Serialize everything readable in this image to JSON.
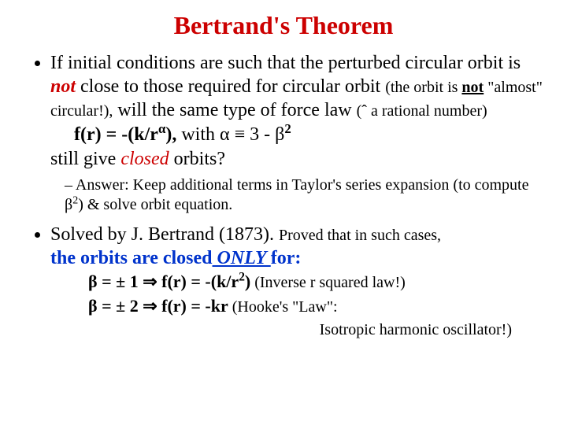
{
  "title": "Bertrand's Theorem",
  "title_color": "#cc0000",
  "fonts": {
    "family": "Times New Roman",
    "title_size_pt": 32,
    "body_size_pt": 24,
    "sub_size_pt": 20
  },
  "colors": {
    "background": "#ffffff",
    "text": "#000000",
    "accent_red": "#cc0000",
    "accent_blue": "#0033cc"
  },
  "bullet1": {
    "pre": "If initial conditions are such that the perturbed circular orbit is ",
    "not": "not",
    "mid": " close to those required for circular orbit ",
    "paren1": "(the orbit is ",
    "paren_not": "not",
    "paren2": " \"almost\" circular!),",
    "mid2": " will the same type of force law  ",
    "paren_hat": "(ˆ a rational number)",
    "eq_label": "f(r) = -(k/r",
    "eq_alpha": "α",
    "eq_close": "),",
    "eq_with": " with α ≡ 3 - β",
    "eq_exp": "2",
    "tail1": "still give ",
    "closed": "closed",
    "tail2": " orbits?",
    "ans1": "Answer: Keep additional terms in Taylor's series expansion (to compute β",
    "ans_exp": "2",
    "ans2": ") & solve orbit equation."
  },
  "bullet2": {
    "pre": "Solved by J. Bertrand (1873). ",
    "sm1": "Proved that in such cases,",
    "line2a": "the orbits are closed",
    "line2b": " ONLY ",
    "line2c": "for:",
    "l1a": "β = ± 1 ⇒ f(r) = -(k/r",
    "l1exp": "2",
    "l1b": ")",
    "l1c": "   (Inverse r squared law!)",
    "l2a": "β = ± 2 ⇒ f(r) = -kr",
    "l2b": "      (Hooke's \"Law\":",
    "l3": "Isotropic harmonic oscillator!)"
  }
}
